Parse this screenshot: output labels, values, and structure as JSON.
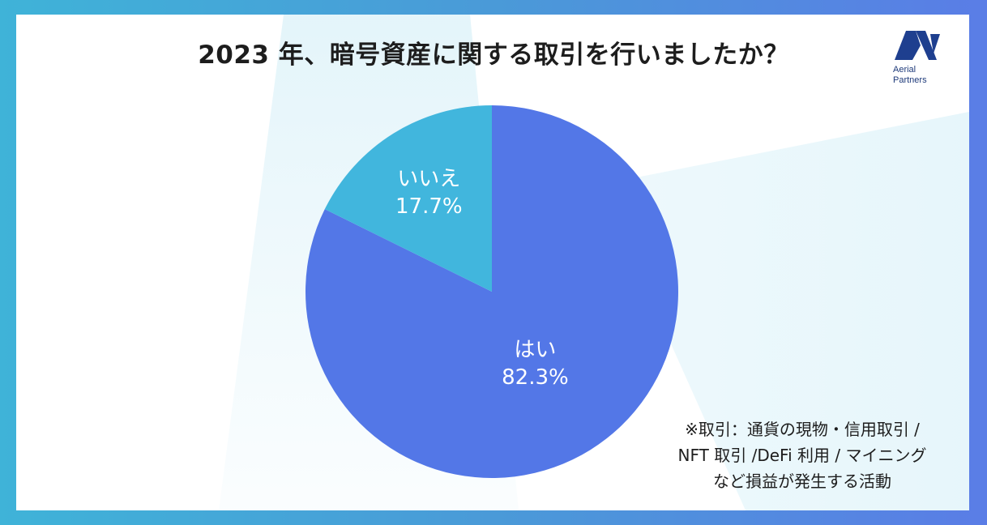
{
  "title": "2023 年、暗号資産に関する取引を行いましたか？",
  "logo": {
    "line1": "Aerial",
    "line2": "Partners",
    "color": "#1e3f8f"
  },
  "chart_data": {
    "type": "pie",
    "title": "2023 年、暗号資産に関する取引を行いましたか？",
    "slices": [
      {
        "label": "はい",
        "value": 82.3,
        "display": "82.3%",
        "color": "#5377e7"
      },
      {
        "label": "いいえ",
        "value": 17.7,
        "display": "17.7%",
        "color": "#41b6dd"
      }
    ],
    "start": "12 o'clock",
    "direction": "clockwise"
  },
  "note": {
    "lines": [
      "※取引：通貨の現物・信用取引 /",
      "NFT 取引 /DeFi 利用 / マイニング",
      "など損益が発生する活動"
    ]
  },
  "colors": {
    "frame_left": "#3fb3d8",
    "frame_right": "#5a7de6",
    "text": "#1d1d1d"
  }
}
